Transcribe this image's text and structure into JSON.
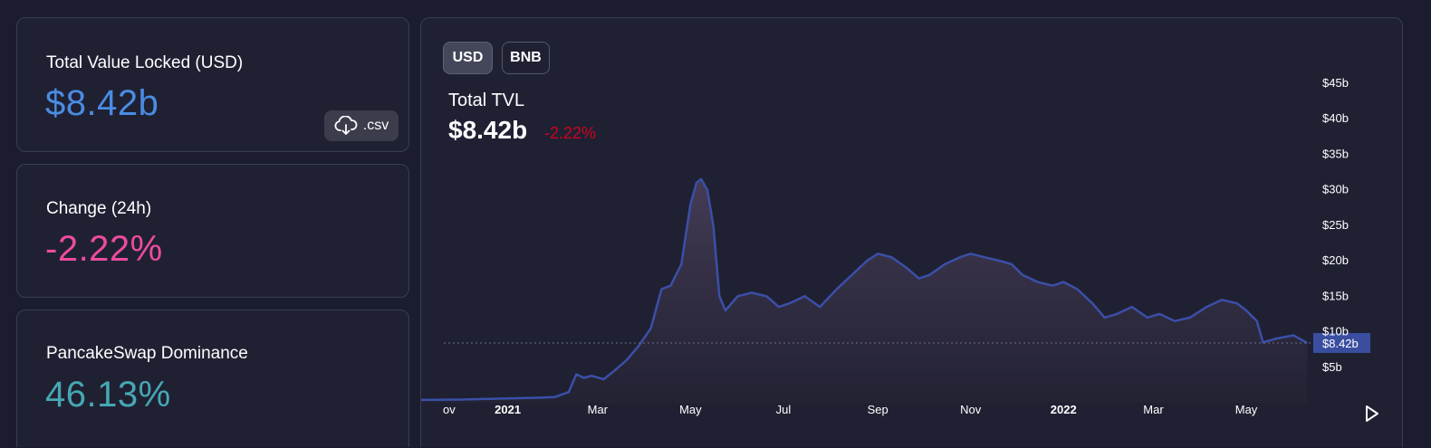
{
  "cards": {
    "tvl": {
      "label": "Total Value Locked (USD)",
      "value": "$8.42b",
      "color": "#4a8ce3"
    },
    "change": {
      "label": "Change (24h)",
      "value": "-2.22%",
      "color": "#ed4b9e"
    },
    "dominance": {
      "label": "PancakeSwap Dominance",
      "value": "46.13%",
      "color": "#46a8b3"
    }
  },
  "csv_button": {
    "label": ".csv",
    "icon": "cloud-download-icon"
  },
  "chart": {
    "toggles": [
      {
        "label": "USD",
        "active": true
      },
      {
        "label": "BNB",
        "active": false
      }
    ],
    "title": "Total TVL",
    "value": "$8.42b",
    "change": "-2.22%",
    "change_color": "#d0021b",
    "current_label": "$8.42b"
  },
  "chart_data": {
    "type": "area",
    "title": "Total TVL",
    "xlabel": "",
    "ylabel": "",
    "ylim": [
      0,
      45
    ],
    "y_unit": "billion USD",
    "yticks": [
      "$5b",
      "$10b",
      "$15b",
      "$20b",
      "$25b",
      "$30b",
      "$35b",
      "$40b",
      "$45b"
    ],
    "ytick_values": [
      5,
      10,
      15,
      20,
      25,
      30,
      35,
      40,
      45
    ],
    "xticks": [
      "ov",
      "2021",
      "Mar",
      "May",
      "Jul",
      "Sep",
      "Nov",
      "2022",
      "Mar",
      "May"
    ],
    "xtick_dates": [
      "2020-11-01",
      "2021-01-01",
      "2021-03-01",
      "2021-05-01",
      "2021-07-01",
      "2021-09-01",
      "2021-11-01",
      "2022-01-01",
      "2022-03-01",
      "2022-05-01"
    ],
    "current_value": 8.42,
    "series": [
      {
        "color": "#3b4fa8",
        "points": [
          [
            "2020-11-01",
            0.4
          ],
          [
            "2020-12-01",
            0.45
          ],
          [
            "2021-01-01",
            0.6
          ],
          [
            "2021-01-20",
            0.7
          ],
          [
            "2021-02-01",
            0.8
          ],
          [
            "2021-02-10",
            1.5
          ],
          [
            "2021-02-15",
            4.0
          ],
          [
            "2021-02-20",
            3.5
          ],
          [
            "2021-02-25",
            3.8
          ],
          [
            "2021-03-05",
            3.3
          ],
          [
            "2021-03-12",
            4.5
          ],
          [
            "2021-03-20",
            6.0
          ],
          [
            "2021-03-28",
            8.0
          ],
          [
            "2021-04-05",
            10.5
          ],
          [
            "2021-04-12",
            16.0
          ],
          [
            "2021-04-18",
            16.5
          ],
          [
            "2021-04-25",
            19.5
          ],
          [
            "2021-05-01",
            28.0
          ],
          [
            "2021-05-05",
            31.0
          ],
          [
            "2021-05-08",
            31.5
          ],
          [
            "2021-05-12",
            30.0
          ],
          [
            "2021-05-16",
            25.0
          ],
          [
            "2021-05-20",
            15.0
          ],
          [
            "2021-05-24",
            13.0
          ],
          [
            "2021-06-01",
            15.0
          ],
          [
            "2021-06-10",
            15.5
          ],
          [
            "2021-06-20",
            15.0
          ],
          [
            "2021-06-28",
            13.5
          ],
          [
            "2021-07-05",
            14.0
          ],
          [
            "2021-07-15",
            15.0
          ],
          [
            "2021-07-25",
            13.5
          ],
          [
            "2021-08-05",
            16.0
          ],
          [
            "2021-08-15",
            18.0
          ],
          [
            "2021-08-25",
            20.0
          ],
          [
            "2021-09-01",
            21.0
          ],
          [
            "2021-09-10",
            20.5
          ],
          [
            "2021-09-20",
            19.0
          ],
          [
            "2021-09-28",
            17.5
          ],
          [
            "2021-10-05",
            18.0
          ],
          [
            "2021-10-15",
            19.5
          ],
          [
            "2021-10-25",
            20.5
          ],
          [
            "2021-11-01",
            21.0
          ],
          [
            "2021-11-10",
            20.5
          ],
          [
            "2021-11-20",
            20.0
          ],
          [
            "2021-11-28",
            19.5
          ],
          [
            "2021-12-05",
            18.0
          ],
          [
            "2021-12-15",
            17.0
          ],
          [
            "2021-12-25",
            16.5
          ],
          [
            "2022-01-01",
            17.0
          ],
          [
            "2022-01-10",
            16.0
          ],
          [
            "2022-01-20",
            14.0
          ],
          [
            "2022-01-28",
            12.0
          ],
          [
            "2022-02-05",
            12.5
          ],
          [
            "2022-02-15",
            13.5
          ],
          [
            "2022-02-25",
            12.0
          ],
          [
            "2022-03-05",
            12.5
          ],
          [
            "2022-03-15",
            11.5
          ],
          [
            "2022-03-25",
            12.0
          ],
          [
            "2022-04-05",
            13.5
          ],
          [
            "2022-04-15",
            14.5
          ],
          [
            "2022-04-25",
            14.0
          ],
          [
            "2022-05-01",
            13.0
          ],
          [
            "2022-05-08",
            11.5
          ],
          [
            "2022-05-12",
            8.5
          ],
          [
            "2022-05-20",
            9.0
          ],
          [
            "2022-06-01",
            9.5
          ],
          [
            "2022-06-10",
            8.42
          ]
        ]
      }
    ],
    "grid": false
  }
}
